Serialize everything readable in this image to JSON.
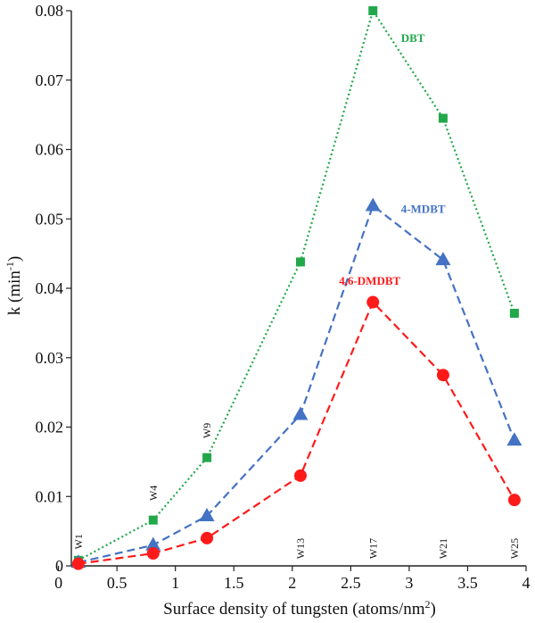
{
  "chart_data": {
    "type": "line",
    "xlabel": "Surface density of tungsten (atoms/nm",
    "xlabel_sup": "2",
    "xlabel_close": ")",
    "ylabel": "k (min",
    "ylabel_sup": "-1",
    "ylabel_close": ")",
    "xlim": [
      0,
      4
    ],
    "ylim": [
      0,
      0.08
    ],
    "x_ticks": [
      "0",
      "0.5",
      "1",
      "1.5",
      "2",
      "2.5",
      "3",
      "3.5",
      "4"
    ],
    "x_tick_values": [
      0,
      0.5,
      1,
      1.5,
      2,
      2.5,
      3,
      3.5,
      4
    ],
    "y_ticks": [
      "0",
      "0.01",
      "0.02",
      "0.03",
      "0.04",
      "0.05",
      "0.06",
      "0.07",
      "0.08"
    ],
    "y_tick_values": [
      0,
      0.01,
      0.02,
      0.03,
      0.04,
      0.05,
      0.06,
      0.07,
      0.08
    ],
    "grid": false,
    "legend": "inline labels",
    "sample_labels": [
      {
        "text": "W1",
        "x": 0.17,
        "y": 0.0035
      },
      {
        "text": "W4",
        "x": 0.81,
        "y": 0.0105
      },
      {
        "text": "W9",
        "x": 1.27,
        "y": 0.0195
      },
      {
        "text": "W13",
        "x": 2.07,
        "y": 0.0025
      },
      {
        "text": "W17",
        "x": 2.69,
        "y": 0.0025
      },
      {
        "text": "W21",
        "x": 3.29,
        "y": 0.0025
      },
      {
        "text": "W25",
        "x": 3.9,
        "y": 0.0025
      }
    ],
    "series": [
      {
        "name": "DBT",
        "color": "#22a84a",
        "marker": "square",
        "line_style": "dotted",
        "x": [
          0.17,
          0.81,
          1.27,
          2.07,
          2.69,
          3.29,
          3.9
        ],
        "values": [
          0.0008,
          0.0066,
          0.0156,
          0.0438,
          0.08,
          0.0645,
          0.0364
        ],
        "label_pos": {
          "x": 2.93,
          "y": 0.0755
        }
      },
      {
        "name": "4-MDBT",
        "color": "#4472c4",
        "marker": "triangle",
        "line_style": "dashed",
        "x": [
          0.17,
          0.81,
          1.27,
          2.07,
          2.69,
          3.29,
          3.9
        ],
        "values": [
          0.0005,
          0.003,
          0.0072,
          0.0218,
          0.0519,
          0.0441,
          0.0181
        ],
        "label_pos": {
          "x": 2.93,
          "y": 0.0509
        }
      },
      {
        "name": "4,6-DMDBT",
        "color": "#ff1a1a",
        "marker": "circle",
        "line_style": "dashed",
        "x": [
          0.17,
          0.81,
          1.27,
          2.07,
          2.69,
          3.29,
          3.9
        ],
        "values": [
          0.0003,
          0.0018,
          0.004,
          0.013,
          0.038,
          0.0275,
          0.0095
        ],
        "label_pos": {
          "x": 2.4,
          "y": 0.0405
        }
      }
    ]
  }
}
